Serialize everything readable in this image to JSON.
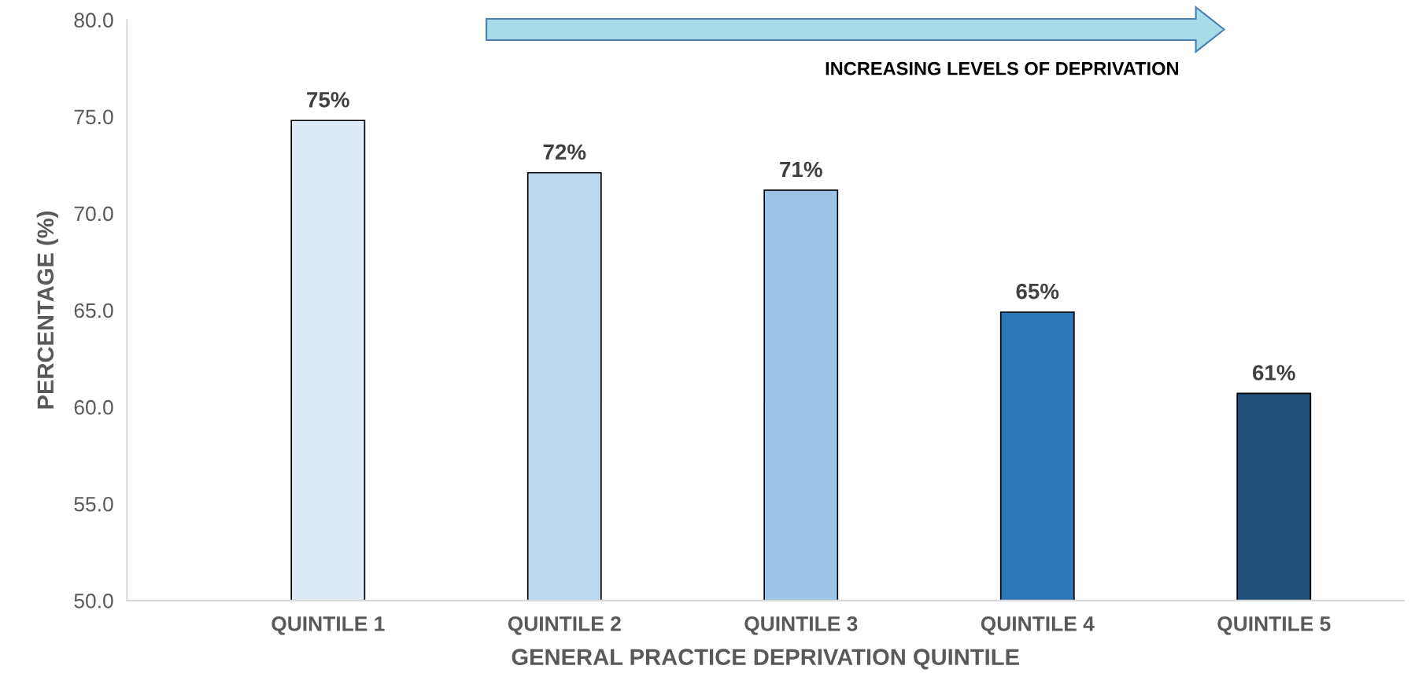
{
  "chart_data": {
    "type": "bar",
    "categories": [
      "QUINTILE 1",
      "QUINTILE 2",
      "QUINTILE 3",
      "QUINTILE 4",
      "QUINTILE 5"
    ],
    "values": [
      74.8,
      72.1,
      71.2,
      64.9,
      60.7
    ],
    "value_labels": [
      "75%",
      "72%",
      "71%",
      "65%",
      "61%"
    ],
    "colors": [
      "#deebf7",
      "#bdd7ee",
      "#9dc3e6",
      "#2e75b6",
      "#1f4e79"
    ],
    "xlabel": "GENERAL PRACTICE DEPRIVATION QUINTILE",
    "ylabel": "PERCENTAGE (%)",
    "ylim": [
      50,
      80
    ],
    "yticks": [
      {
        "value": 50,
        "label": "50.0"
      },
      {
        "value": 55,
        "label": "55.0"
      },
      {
        "value": 60,
        "label": "60.0"
      },
      {
        "value": 65,
        "label": "65.0"
      },
      {
        "value": 70,
        "label": "70.0"
      },
      {
        "value": 75,
        "label": "75.0"
      },
      {
        "value": 80,
        "label": "80.0"
      }
    ],
    "annotations": [
      "INCREASING LEVELS OF DEPRIVATION"
    ],
    "grid": false,
    "legend": false
  }
}
